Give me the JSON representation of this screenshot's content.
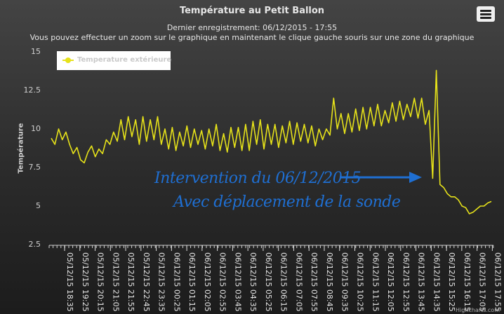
{
  "header": {
    "title": "Température au Petit Ballon",
    "subtitle_line1": "Dernier enregistrement: 06/12/2015 - 17:55",
    "subtitle_line2": "Vous pouvez effectuer un zoom sur le graphique en maintenant le clique gauche souris sur une zone du graphique"
  },
  "menu": {
    "icon": "hamburger-menu-icon"
  },
  "credit": "Highcharts.com",
  "annotation": {
    "line1": "Intervention du 06/12/2015",
    "line2": "Avec déplacement de la sonde",
    "color": "#1f6fd2"
  },
  "chart_data": {
    "type": "line",
    "title": "Température au Petit Ballon",
    "ylabel": "Température",
    "ylim": [
      2.5,
      15
    ],
    "yticks": [
      2.5,
      5,
      7.5,
      10,
      12.5,
      15
    ],
    "legend": {
      "position": "top-left"
    },
    "grid": false,
    "x_tick_labels": [
      "05/12/15 18:35",
      "05/12/15 19:25",
      "05/12/15 20:15",
      "05/12/15 21:05",
      "05/12/15 21:55",
      "05/12/15 22:45",
      "05/12/15 23:35",
      "06/12/15 00:25",
      "06/12/15 01:15",
      "06/12/15 02:05",
      "06/12/15 02:55",
      "06/12/15 03:45",
      "06/12/15 04:35",
      "06/12/15 05:25",
      "06/12/15 06:15",
      "06/12/15 07:05",
      "06/12/15 07:55",
      "06/12/15 08:45",
      "06/12/15 09:35",
      "06/12/15 10:25",
      "06/12/15 11:15",
      "06/12/15 12:05",
      "06/12/15 12:55",
      "06/12/15 13:45",
      "06/12/15 14:35",
      "06/12/15 15:25",
      "06/12/15 16:15",
      "06/12/15 17:05",
      "06/12/15 17:55"
    ],
    "series": [
      {
        "name": "Temperature extérieure",
        "color": "#e6e21a",
        "values": [
          9.4,
          9.0,
          10.0,
          9.3,
          9.8,
          9.0,
          8.4,
          8.8,
          8.0,
          7.8,
          8.5,
          8.9,
          8.2,
          8.7,
          8.4,
          9.3,
          9.0,
          9.8,
          9.2,
          10.6,
          9.3,
          10.8,
          9.5,
          10.6,
          9.0,
          10.8,
          9.2,
          10.6,
          9.3,
          10.8,
          9.0,
          10.0,
          8.7,
          10.1,
          8.6,
          9.8,
          8.9,
          10.2,
          8.8,
          10.0,
          9.0,
          9.9,
          8.7,
          10.0,
          8.9,
          10.3,
          8.6,
          9.7,
          8.5,
          10.1,
          8.8,
          10.1,
          8.6,
          10.3,
          8.6,
          10.5,
          9.0,
          10.6,
          8.7,
          10.3,
          9.0,
          10.3,
          8.8,
          10.2,
          9.1,
          10.5,
          9.0,
          10.4,
          9.2,
          10.3,
          9.1,
          10.2,
          8.9,
          10.0,
          9.3,
          10.0,
          9.6,
          12.0,
          10.0,
          11.0,
          9.7,
          11.0,
          9.8,
          11.3,
          9.9,
          11.4,
          10.0,
          11.4,
          10.2,
          11.6,
          10.2,
          11.2,
          10.4,
          11.7,
          10.5,
          11.8,
          10.6,
          11.6,
          10.8,
          12.0,
          10.7,
          12.0,
          10.3,
          11.2,
          6.8,
          13.8,
          6.4,
          6.2,
          5.8,
          5.6,
          5.6,
          5.4,
          5.0,
          4.9,
          4.5,
          4.6,
          4.8,
          5.0,
          5.0,
          5.2,
          5.3
        ]
      }
    ]
  }
}
